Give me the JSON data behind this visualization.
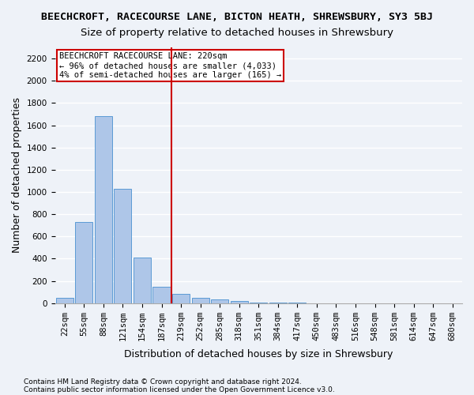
{
  "title_line1": "BEECHCROFT, RACECOURSE LANE, BICTON HEATH, SHREWSBURY, SY3 5BJ",
  "title_line2": "Size of property relative to detached houses in Shrewsbury",
  "xlabel": "Distribution of detached houses by size in Shrewsbury",
  "ylabel": "Number of detached properties",
  "categories": [
    "22sqm",
    "55sqm",
    "88sqm",
    "121sqm",
    "154sqm",
    "187sqm",
    "219sqm",
    "252sqm",
    "285sqm",
    "318sqm",
    "351sqm",
    "384sqm",
    "417sqm",
    "450sqm",
    "483sqm",
    "516sqm",
    "548sqm",
    "581sqm",
    "614sqm",
    "647sqm",
    "680sqm"
  ],
  "values": [
    50,
    730,
    1680,
    1030,
    410,
    150,
    80,
    45,
    30,
    20,
    5,
    3,
    2,
    1,
    0,
    0,
    0,
    0,
    0,
    0,
    0
  ],
  "bar_color": "#aec6e8",
  "bar_edge_color": "#5b9bd5",
  "vline_color": "#cc0000",
  "vline_x_index": 6,
  "annotation_text": "BEECHCROFT RACECOURSE LANE: 220sqm\n← 96% of detached houses are smaller (4,033)\n4% of semi-detached houses are larger (165) →",
  "annotation_box_color": "#ffffff",
  "annotation_border_color": "#cc0000",
  "ylim": [
    0,
    2300
  ],
  "yticks": [
    0,
    200,
    400,
    600,
    800,
    1000,
    1200,
    1400,
    1600,
    1800,
    2000,
    2200
  ],
  "footer_line1": "Contains HM Land Registry data © Crown copyright and database right 2024.",
  "footer_line2": "Contains public sector information licensed under the Open Government Licence v3.0.",
  "background_color": "#eef2f8",
  "plot_bg_color": "#eef2f8",
  "grid_color": "#ffffff",
  "title_fontsize": 9.5,
  "subtitle_fontsize": 9.5,
  "tick_fontsize": 7.5,
  "label_fontsize": 9,
  "annotation_fontsize": 7.5
}
